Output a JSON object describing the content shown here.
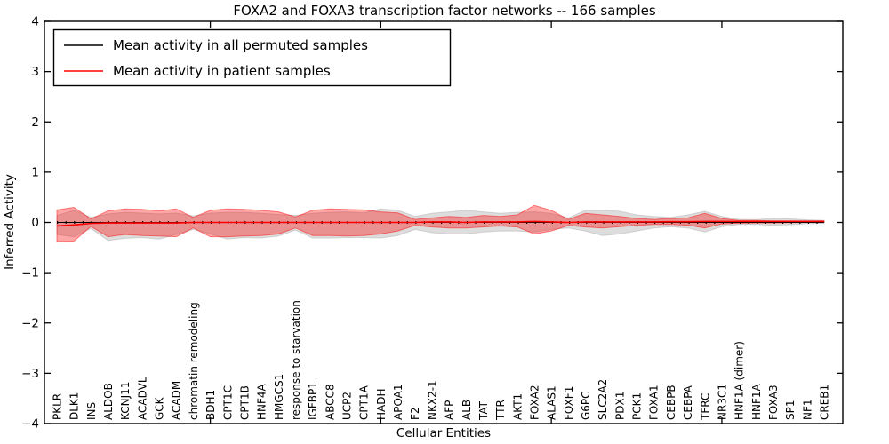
{
  "figure": {
    "title": "FOXA2 and FOXA3 transcription factor networks -- 166 samples",
    "xlabel": "Cellular Entities",
    "ylabel": "Inferred Activity"
  },
  "legend": {
    "items": [
      {
        "label": "Mean activity in all permuted samples",
        "color": "#000000"
      },
      {
        "label": "Mean activity in patient samples",
        "color": "#ff0000"
      }
    ]
  },
  "colors": {
    "permuted_line": "#000000",
    "patient_line": "#ff0000",
    "permuted_band": "#bbbbbb",
    "patient_band": "#ff0000",
    "frame": "#000000"
  },
  "chart_data": {
    "type": "area",
    "title": "FOXA2 and FOXA3 transcription factor networks -- 166 samples",
    "xlabel": "Cellular Entities",
    "ylabel": "Inferred Activity",
    "ylim": [
      -4,
      4
    ],
    "y_ticks": [
      4,
      3,
      2,
      1,
      0,
      -1,
      -2,
      -3,
      -4
    ],
    "x_tick_entity_numbers": [
      10,
      20,
      30,
      40
    ],
    "legend_position": "upper left",
    "grid": false,
    "categories": [
      "PKLR",
      "DLK1",
      "INS",
      "ALDOB",
      "KCNJ11",
      "ACADVL",
      "GCK",
      "ACADM",
      "chromatin remodeling",
      "BDH1",
      "CPT1C",
      "CPT1B",
      "HNF4A",
      "HMGCS1",
      "response to starvation",
      "IGFBP1",
      "ABCC8",
      "UCP2",
      "CPT1A",
      "HADH",
      "APOA1",
      "F2",
      "NKX2-1",
      "AFP",
      "ALB",
      "TAT",
      "TTR",
      "AKT1",
      "FOXA2",
      "ALAS1",
      "FOXF1",
      "G6PC",
      "SLC2A2",
      "PDX1",
      "PCK1",
      "FOXA1",
      "CEBPB",
      "CEBPA",
      "TFRC",
      "NR3C1",
      "HNF1A (dimer)",
      "HNF1A",
      "FOXA3",
      "SP1",
      "NF1",
      "CREB1"
    ],
    "series": [
      {
        "name": "Permuted samples range",
        "role": "band",
        "color": "#bbbbbb",
        "opacity": 0.5,
        "upper": [
          0.14,
          0.24,
          0.1,
          0.17,
          0.2,
          0.185,
          0.17,
          0.185,
          0.13,
          0.185,
          0.2,
          0.2,
          0.18,
          0.16,
          0.14,
          0.18,
          0.2,
          0.21,
          0.19,
          0.27,
          0.24,
          0.12,
          0.18,
          0.21,
          0.24,
          0.21,
          0.18,
          0.2,
          0.21,
          0.18,
          0.09,
          0.24,
          0.24,
          0.22,
          0.15,
          0.12,
          0.1,
          0.15,
          0.22,
          0.12,
          0.06,
          0.055,
          0.08,
          0.07,
          0.05,
          0.04
        ],
        "lower": [
          -0.24,
          -0.285,
          -0.12,
          -0.36,
          -0.315,
          -0.3,
          -0.33,
          -0.24,
          -0.14,
          -0.23,
          -0.33,
          -0.3,
          -0.31,
          -0.27,
          -0.15,
          -0.31,
          -0.31,
          -0.3,
          -0.3,
          -0.31,
          -0.26,
          -0.14,
          -0.2,
          -0.23,
          -0.23,
          -0.19,
          -0.17,
          -0.17,
          -0.19,
          -0.14,
          -0.11,
          -0.17,
          -0.26,
          -0.23,
          -0.17,
          -0.11,
          -0.085,
          -0.11,
          -0.19,
          -0.085,
          -0.04,
          -0.04,
          -0.055,
          -0.045,
          -0.025,
          -0.015
        ]
      },
      {
        "name": "Patient samples range",
        "role": "band",
        "color": "#ff0000",
        "opacity": 0.35,
        "upper": [
          0.25,
          0.3,
          0.07,
          0.23,
          0.27,
          0.26,
          0.23,
          0.27,
          0.1,
          0.24,
          0.27,
          0.26,
          0.24,
          0.21,
          0.11,
          0.24,
          0.27,
          0.26,
          0.25,
          0.21,
          0.19,
          0.06,
          0.09,
          0.12,
          0.1,
          0.14,
          0.12,
          0.15,
          0.34,
          0.24,
          0.06,
          0.18,
          0.15,
          0.12,
          0.08,
          0.06,
          0.08,
          0.09,
          0.18,
          0.08,
          0.04,
          0.04,
          0.03,
          0.03,
          0.03,
          0.03
        ],
        "lower": [
          -0.38,
          -0.37,
          -0.08,
          -0.285,
          -0.24,
          -0.26,
          -0.27,
          -0.285,
          -0.11,
          -0.285,
          -0.285,
          -0.27,
          -0.26,
          -0.23,
          -0.11,
          -0.26,
          -0.26,
          -0.27,
          -0.26,
          -0.23,
          -0.17,
          -0.06,
          -0.09,
          -0.11,
          -0.11,
          -0.09,
          -0.07,
          -0.09,
          -0.23,
          -0.17,
          -0.06,
          -0.09,
          -0.11,
          -0.085,
          -0.06,
          -0.04,
          -0.04,
          -0.055,
          -0.11,
          -0.03,
          -0.015,
          -0.01,
          -0.01,
          -0.005,
          0.0,
          0.0
        ]
      },
      {
        "name": "Mean activity in all permuted samples",
        "role": "line",
        "color": "#000000",
        "values": [
          0,
          0,
          0,
          0,
          0,
          0,
          0,
          0,
          0,
          0,
          0,
          0,
          0,
          0,
          0,
          0,
          0,
          0,
          0,
          0,
          0,
          0,
          0,
          0,
          0,
          0,
          0,
          0,
          0,
          0,
          0,
          0,
          0,
          0,
          0,
          0,
          0,
          0,
          0,
          0,
          0,
          0,
          0,
          0,
          0,
          0
        ]
      },
      {
        "name": "Mean activity in patient samples",
        "role": "line",
        "color": "#ff0000",
        "values": [
          -0.07,
          -0.05,
          -0.02,
          -0.01,
          -0.01,
          -0.01,
          -0.01,
          -0.01,
          0,
          0,
          0,
          0,
          0,
          0,
          0,
          0,
          0,
          0,
          0,
          0,
          0,
          0,
          0.01,
          0.01,
          0,
          0.01,
          0.01,
          0.01,
          0.02,
          0.01,
          0,
          0.01,
          0.01,
          0.01,
          0.01,
          0.01,
          0.015,
          0.015,
          0.02,
          0.02,
          0.02,
          0.02,
          0.02,
          0.02,
          0.02,
          0.02
        ]
      }
    ]
  }
}
